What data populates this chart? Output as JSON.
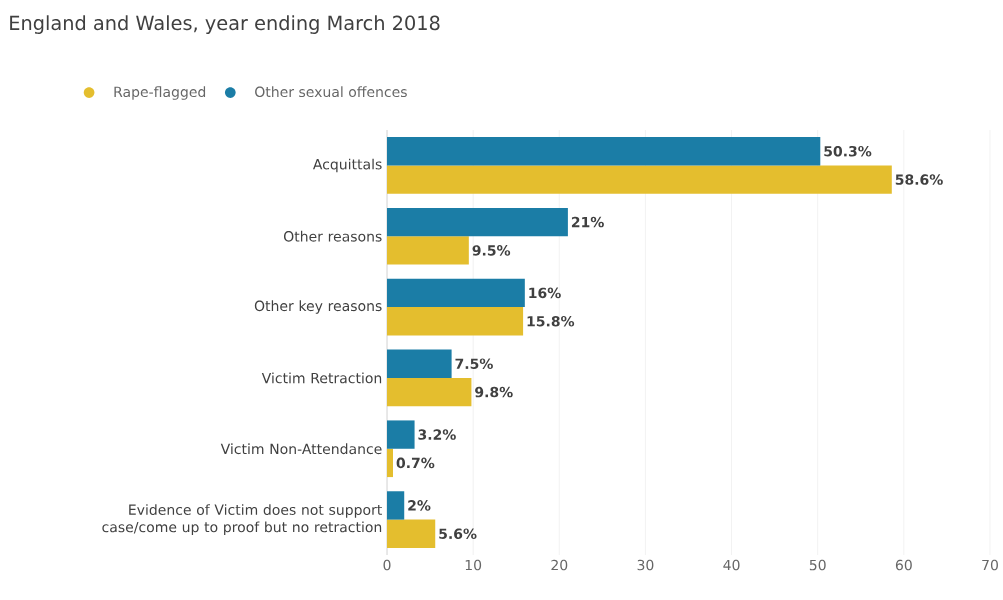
{
  "chart_data": {
    "type": "bar",
    "orientation": "horizontal",
    "title": "England and Wales, year ending March 2018",
    "categories": [
      "Acquittals",
      "Other reasons",
      "Other key reasons",
      "Victim Retraction",
      "Victim Non-Attendance",
      "Evidence of Victim does not support case/come up to proof but no retraction"
    ],
    "series": [
      {
        "name": "Rape-flagged",
        "color": "#e4be2e",
        "values": [
          58.6,
          9.5,
          15.8,
          9.8,
          0.7,
          5.6
        ],
        "value_labels": [
          "58.6%",
          "9.5%",
          "15.8%",
          "9.8%",
          "0.7%",
          "5.6%"
        ]
      },
      {
        "name": "Other sexual offences",
        "color": "#1b7da6",
        "values": [
          50.3,
          21,
          16,
          7.5,
          3.2,
          2
        ],
        "value_labels": [
          "50.3%",
          "21%",
          "16%",
          "7.5%",
          "3.2%",
          "2%"
        ]
      }
    ],
    "xlim": [
      0,
      70
    ],
    "xticks": [
      0,
      10,
      20,
      30,
      40,
      50,
      60,
      70
    ],
    "grid": "x",
    "legend": "top left"
  }
}
